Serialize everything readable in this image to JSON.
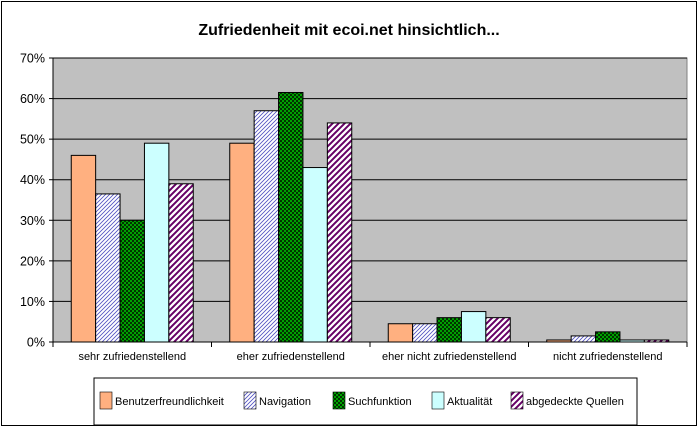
{
  "chart_data": {
    "type": "bar",
    "title": "Zufriedenheit mit ecoi.net hinsichtlich...",
    "xlabel": "",
    "ylabel": "",
    "ylim": [
      0,
      70
    ],
    "ytick_labels": [
      "0%",
      "10%",
      "20%",
      "30%",
      "40%",
      "50%",
      "60%",
      "70%"
    ],
    "categories": [
      "sehr zufriedenstellend",
      "eher zufriedenstellend",
      "eher nicht zufriedenstellend",
      "nicht zufriedenstellend"
    ],
    "series": [
      {
        "name": "Benutzerfreundlichkeit",
        "values": [
          46,
          49,
          4.5,
          0.5
        ],
        "color": "#FFB080",
        "pattern": "solid"
      },
      {
        "name": "Navigation",
        "values": [
          36.5,
          57,
          4.5,
          1.5
        ],
        "color": "#5050C0",
        "pattern": "diagonal-thin"
      },
      {
        "name": "Suchfunktion",
        "values": [
          30,
          61.5,
          6,
          2.5
        ],
        "color": "#00A000",
        "pattern": "checker"
      },
      {
        "name": "Aktualität",
        "values": [
          49,
          43,
          7.5,
          0.5
        ],
        "color": "#CCFFFF",
        "pattern": "solid"
      },
      {
        "name": "abgedeckte Quellen",
        "values": [
          39,
          54,
          6,
          0.5
        ],
        "color": "#660066",
        "pattern": "diagonal-thick"
      }
    ],
    "grid": true,
    "legend": "bottom",
    "plot_background": "#C0C0C0"
  }
}
